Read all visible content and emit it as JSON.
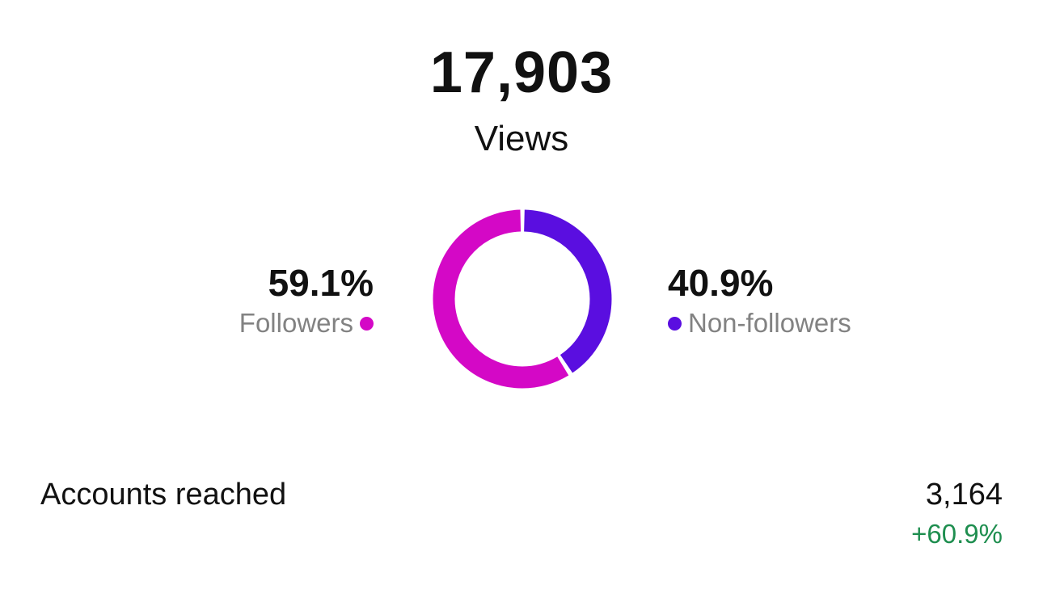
{
  "views": {
    "total": "17,903",
    "label": "Views"
  },
  "breakdown": {
    "followers": {
      "percent": "59.1%",
      "label": "Followers",
      "color": "#d408c6"
    },
    "non_followers": {
      "percent": "40.9%",
      "label": "Non-followers",
      "color": "#5a0ee0"
    }
  },
  "chart_data": {
    "type": "pie",
    "categories": [
      "Followers",
      "Non-followers"
    ],
    "values": [
      59.1,
      40.9
    ],
    "colors": [
      "#d408c6",
      "#5a0ee0"
    ]
  },
  "accounts_reached": {
    "label": "Accounts reached",
    "value": "3,164",
    "change": "+60.9%",
    "change_color": "#1e8e4f"
  }
}
